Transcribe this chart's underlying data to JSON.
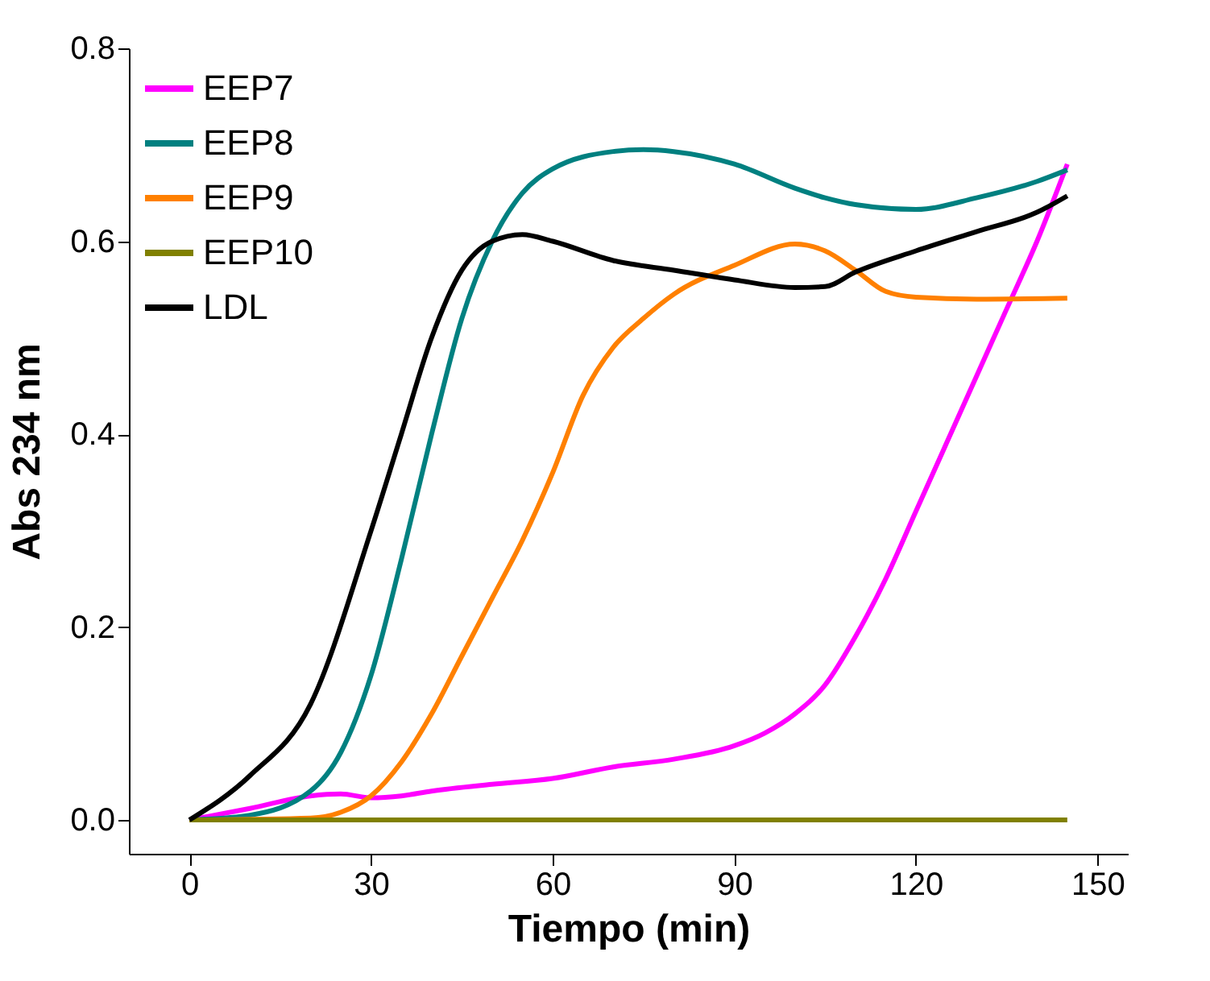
{
  "chart_data": {
    "type": "line",
    "xlabel": "Tiempo (min)",
    "ylabel": "Abs 234 nm",
    "xlim": [
      -10,
      155
    ],
    "xticks": [
      0,
      30,
      60,
      90,
      120,
      150
    ],
    "ylim": [
      -0.035,
      0.8
    ],
    "yticks": [
      {
        "value": 0,
        "label": "0.0"
      },
      0.2,
      0.4,
      0.6,
      0.8
    ],
    "grid": false,
    "legend": "top left",
    "marker": "none",
    "line_style": "solid",
    "series": [
      {
        "name": "EEP7",
        "color": "#ff00ff",
        "x": [
          0,
          10,
          20,
          25,
          30,
          35,
          40,
          50,
          60,
          70,
          80,
          90,
          95,
          100,
          105,
          110,
          115,
          120,
          125,
          130,
          135,
          140,
          145
        ],
        "values": [
          0,
          0.012,
          0.025,
          0.027,
          0.023,
          0.025,
          0.03,
          0.037,
          0.043,
          0.055,
          0.063,
          0.077,
          0.09,
          0.11,
          0.14,
          0.19,
          0.25,
          0.32,
          0.39,
          0.46,
          0.53,
          0.6,
          0.68
        ]
      },
      {
        "name": "EEP8",
        "color": "#008080",
        "x": [
          0,
          10,
          20,
          25,
          30,
          35,
          40,
          45,
          50,
          55,
          60,
          70,
          75,
          80,
          90,
          100,
          105,
          110,
          120,
          130,
          140,
          145
        ],
        "values": [
          0,
          0.005,
          0.03,
          0.07,
          0.15,
          0.27,
          0.4,
          0.52,
          0.6,
          0.65,
          0.675,
          0.693,
          0.695,
          0.693,
          0.68,
          0.655,
          0.645,
          0.638,
          0.633,
          0.645,
          0.662,
          0.674
        ]
      },
      {
        "name": "EEP9",
        "color": "#ff8000",
        "x": [
          0,
          20,
          25,
          30,
          35,
          40,
          45,
          50,
          55,
          60,
          65,
          70,
          75,
          80,
          90,
          100,
          105,
          110,
          115,
          120,
          130,
          145
        ],
        "values": [
          0,
          0.002,
          0.008,
          0.025,
          0.06,
          0.11,
          0.17,
          0.23,
          0.29,
          0.36,
          0.44,
          0.49,
          0.52,
          0.545,
          0.575,
          0.597,
          0.59,
          0.57,
          0.548,
          0.542,
          0.54,
          0.541
        ]
      },
      {
        "name": "EEP10",
        "color": "#808000",
        "x": [
          0,
          145
        ],
        "values": [
          0,
          0
        ]
      },
      {
        "name": "LDL",
        "color": "#000000",
        "x": [
          0,
          10,
          20,
          30,
          35,
          40,
          45,
          50,
          55,
          60,
          70,
          80,
          90,
          100,
          105,
          110,
          120,
          130,
          140,
          145
        ],
        "values": [
          0,
          0.046,
          0.12,
          0.3,
          0.4,
          0.5,
          0.57,
          0.6,
          0.607,
          0.6,
          0.58,
          0.57,
          0.56,
          0.552,
          0.553,
          0.568,
          0.59,
          0.61,
          0.63,
          0.647
        ]
      }
    ]
  }
}
